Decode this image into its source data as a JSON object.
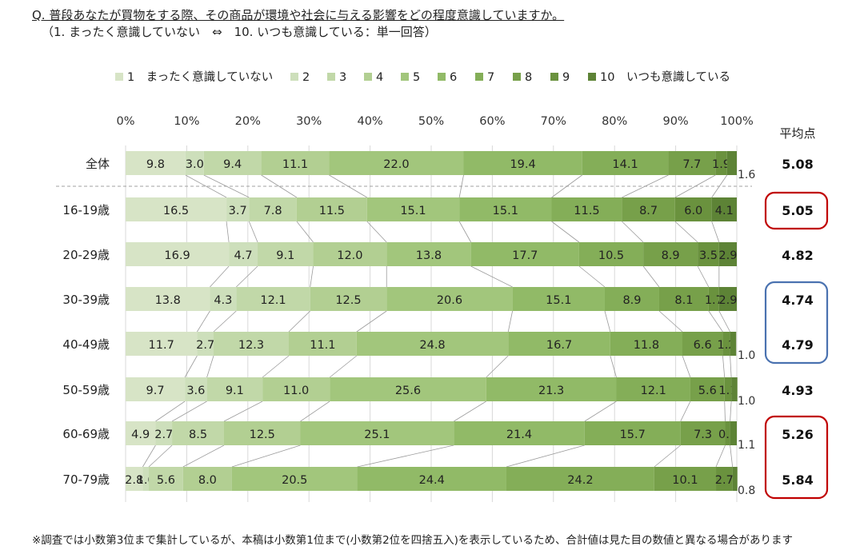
{
  "header": {
    "question": "Q. 普段あなたが買物をする際、その商品が環境や社会に与える影響をどの程度意識していますか。",
    "subtitle": "（1. まったく意識していない　⇔　10. いつも意識している：単一回答）"
  },
  "footnote": "※調査では小数第3位まで集計しているが、本稿は小数第1位まで(小数第2位を四捨五入)を表示しているため、合計値は見た目の数値と異なる場合があります",
  "colors": {
    "segments": [
      "#d7e4c6",
      "#cddfbb",
      "#c1d8a8",
      "#b2cf92",
      "#a2c67c",
      "#91ba67",
      "#84ae58",
      "#77a04a",
      "#6a923e",
      "#5d8336"
    ],
    "highlight_red": "#c00000",
    "highlight_blue": "#4a72b0"
  },
  "chart_data": {
    "type": "bar",
    "orientation": "horizontal",
    "stacked": true,
    "legend_position": "top",
    "xlim": [
      0,
      100
    ],
    "x_ticks": [
      "0%",
      "10%",
      "20%",
      "30%",
      "40%",
      "50%",
      "60%",
      "70%",
      "80%",
      "90%",
      "100%"
    ],
    "grid": true,
    "categories": [
      "全体",
      "16-19歳",
      "20-29歳",
      "30-39歳",
      "40-49歳",
      "50-59歳",
      "60-69歳",
      "70-79歳"
    ],
    "series": [
      {
        "name": "1　まったく意識していない",
        "values": [
          9.8,
          16.5,
          16.9,
          13.8,
          11.7,
          9.7,
          4.9,
          2.8
        ]
      },
      {
        "name": "2",
        "values": [
          3.0,
          3.7,
          4.7,
          4.3,
          2.7,
          3.6,
          2.7,
          1.0
        ]
      },
      {
        "name": "3",
        "values": [
          9.4,
          7.8,
          9.1,
          12.1,
          12.3,
          9.1,
          8.5,
          5.6
        ]
      },
      {
        "name": "4",
        "values": [
          11.1,
          11.5,
          12.0,
          12.5,
          11.1,
          11.0,
          12.5,
          8.0
        ]
      },
      {
        "name": "5",
        "values": [
          22.0,
          15.1,
          13.8,
          20.6,
          24.8,
          25.6,
          25.1,
          20.5
        ]
      },
      {
        "name": "6",
        "values": [
          19.4,
          15.1,
          17.7,
          15.1,
          16.7,
          21.3,
          21.4,
          24.4
        ]
      },
      {
        "name": "7",
        "values": [
          14.1,
          11.5,
          10.5,
          8.9,
          11.8,
          12.1,
          15.7,
          24.2
        ]
      },
      {
        "name": "8",
        "values": [
          7.7,
          8.7,
          8.9,
          8.1,
          6.6,
          5.6,
          7.3,
          10.1
        ]
      },
      {
        "name": "9",
        "values": [
          1.9,
          6.0,
          3.5,
          1.7,
          1.2,
          1.1,
          0.8,
          2.7
        ]
      },
      {
        "name": "10　いつも意識している",
        "values": [
          1.6,
          4.1,
          2.9,
          2.9,
          1.0,
          1.0,
          1.1,
          0.8
        ]
      }
    ],
    "average_header": "平均点",
    "averages": [
      "5.08",
      "5.05",
      "4.82",
      "4.74",
      "4.79",
      "4.93",
      "5.26",
      "5.84"
    ],
    "highlight_groups": [
      {
        "color": "red",
        "rows": [
          1
        ]
      },
      {
        "color": "blue",
        "rows": [
          3,
          4
        ]
      },
      {
        "color": "red",
        "rows": [
          6,
          7
        ]
      }
    ]
  }
}
